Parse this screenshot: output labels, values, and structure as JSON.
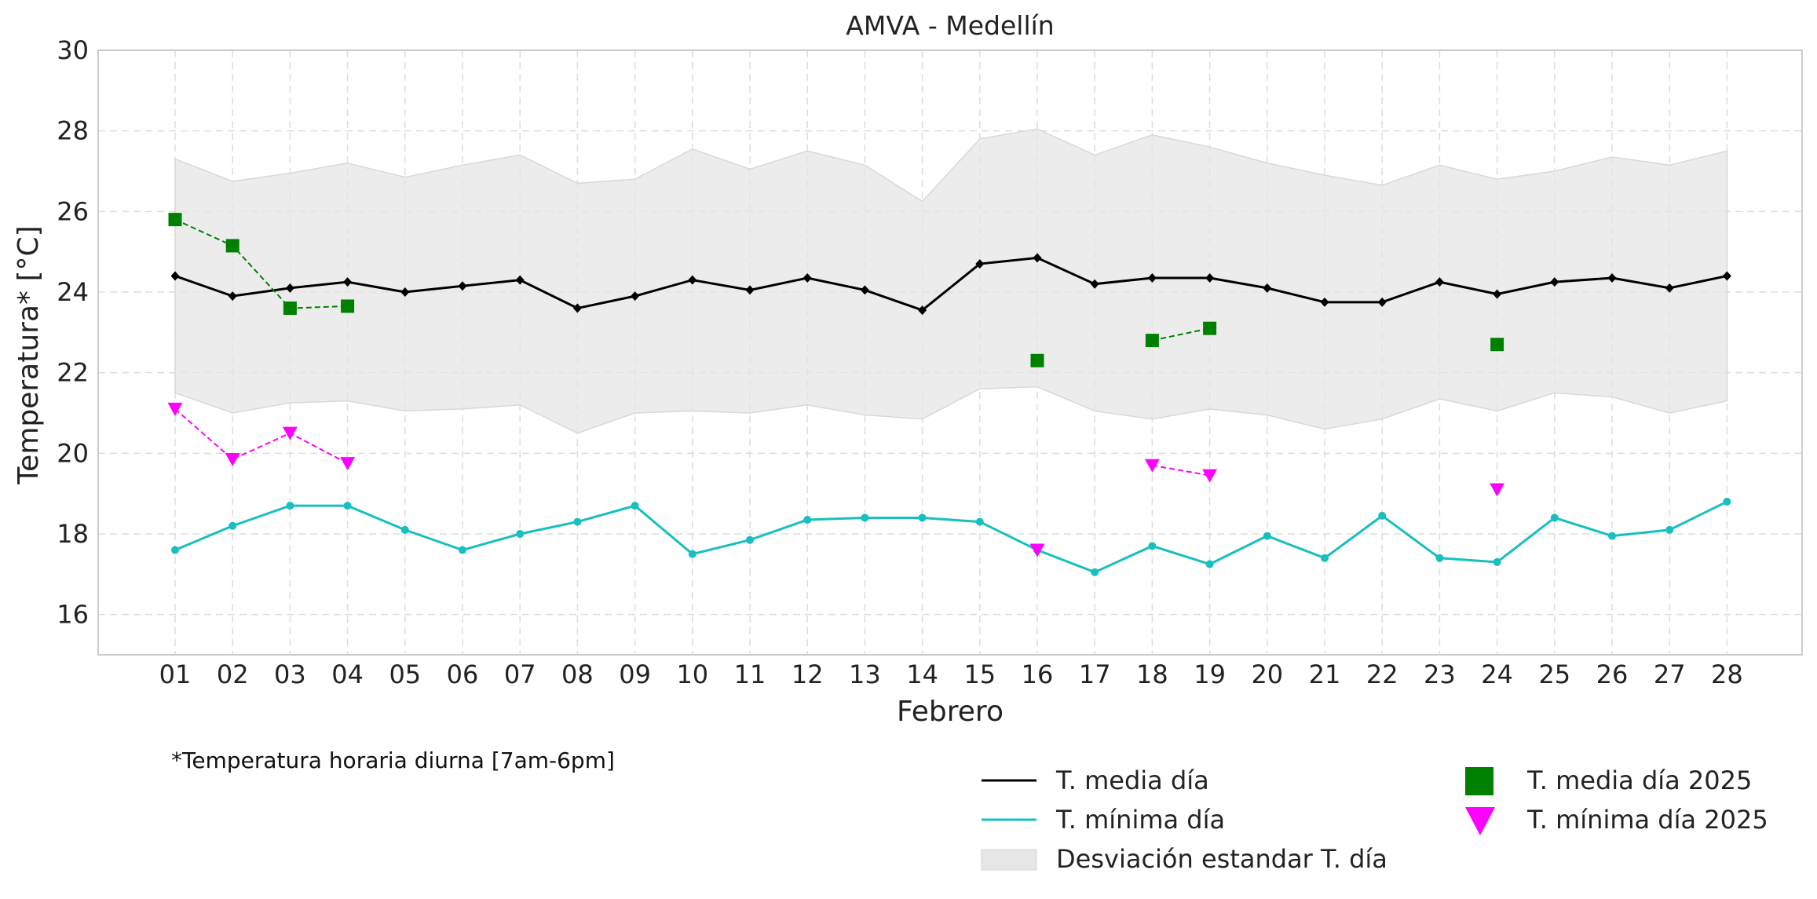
{
  "chart_data": {
    "type": "line",
    "title": "AMVA - Medellín",
    "xlabel": "Febrero",
    "ylabel": "Temperatura* [°C]",
    "ylim": [
      15,
      30
    ],
    "yticks": [
      16,
      18,
      20,
      22,
      24,
      26,
      28,
      30
    ],
    "grid": true,
    "categories": [
      "01",
      "02",
      "03",
      "04",
      "05",
      "06",
      "07",
      "08",
      "09",
      "10",
      "11",
      "12",
      "13",
      "14",
      "15",
      "16",
      "17",
      "18",
      "19",
      "20",
      "21",
      "22",
      "23",
      "24",
      "25",
      "26",
      "27",
      "28"
    ],
    "band": {
      "name": "Desviación estandar T. día",
      "upper": [
        27.3,
        26.75,
        26.95,
        27.2,
        26.85,
        27.15,
        27.4,
        26.7,
        26.8,
        27.55,
        27.05,
        27.5,
        27.15,
        26.25,
        27.8,
        28.05,
        27.4,
        27.9,
        27.6,
        27.2,
        26.9,
        26.65,
        27.15,
        26.8,
        27.0,
        27.35,
        27.15,
        27.5
      ],
      "lower": [
        21.5,
        21.0,
        21.25,
        21.3,
        21.05,
        21.1,
        21.2,
        20.5,
        21.0,
        21.05,
        21.0,
        21.2,
        20.95,
        20.85,
        21.6,
        21.65,
        21.05,
        20.85,
        21.1,
        20.95,
        20.6,
        20.85,
        21.35,
        21.05,
        21.5,
        21.4,
        21.0,
        21.3
      ],
      "color": "#e6e6e6"
    },
    "series": [
      {
        "name": "T. media día",
        "color": "#000000",
        "values": [
          24.4,
          23.9,
          24.1,
          24.25,
          24.0,
          24.15,
          24.3,
          23.6,
          23.9,
          24.3,
          24.05,
          24.35,
          24.05,
          23.55,
          24.7,
          24.85,
          24.2,
          24.35,
          24.35,
          24.1,
          23.75,
          23.75,
          24.25,
          23.95,
          24.25,
          24.35,
          24.1,
          24.4
        ]
      },
      {
        "name": "T. mínima día",
        "color": "#17bfbf",
        "values": [
          17.6,
          18.2,
          18.7,
          18.7,
          18.1,
          17.6,
          18.0,
          18.3,
          18.7,
          17.5,
          17.85,
          18.35,
          18.4,
          18.4,
          18.3,
          17.6,
          17.05,
          17.7,
          17.25,
          17.95,
          17.4,
          18.45,
          17.4,
          17.3,
          18.4,
          17.95,
          18.1,
          18.8
        ]
      },
      {
        "name": "T. media día 2025",
        "color": "#008000",
        "marker": "square",
        "values": [
          25.8,
          25.15,
          23.6,
          23.65,
          null,
          null,
          null,
          null,
          null,
          null,
          null,
          null,
          null,
          null,
          null,
          22.3,
          null,
          22.8,
          23.1,
          null,
          null,
          null,
          null,
          22.7,
          null,
          null,
          null,
          null
        ]
      },
      {
        "name": "T. mínima día 2025",
        "color": "#ff00ff",
        "marker": "triangle-down",
        "values": [
          21.1,
          19.85,
          20.5,
          19.75,
          null,
          null,
          null,
          null,
          null,
          null,
          null,
          null,
          null,
          null,
          null,
          17.6,
          null,
          19.7,
          19.45,
          null,
          null,
          null,
          null,
          19.1,
          null,
          null,
          null,
          null
        ]
      }
    ],
    "legend": {
      "placement": "bottom-right",
      "entries": [
        "T. media día",
        "T. mínima día",
        "Desviación estandar T. día",
        "T. media día 2025",
        "T. mínima día 2025"
      ]
    },
    "footnote": "*Temperatura horaria diurna [7am-6pm]"
  }
}
